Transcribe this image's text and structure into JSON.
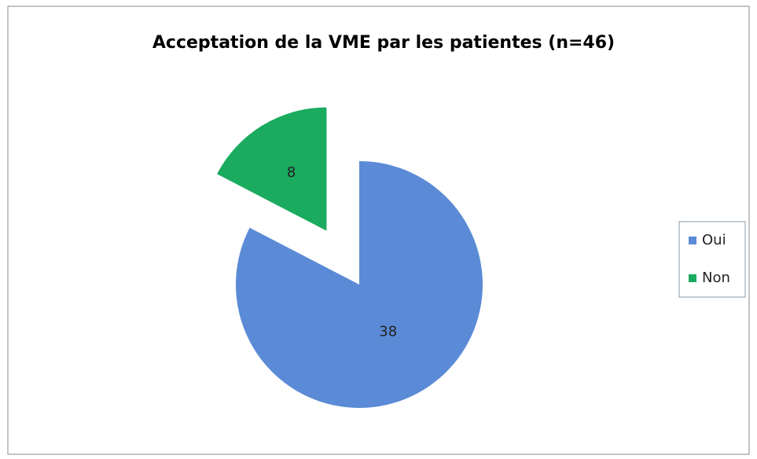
{
  "chart_data": {
    "type": "pie",
    "title": "Acceptation de la VME par les patientes (n=46)",
    "categories": [
      "Oui",
      "Non"
    ],
    "values": [
      38,
      8
    ],
    "colors": [
      "#5b8bd6",
      "#1aab5f"
    ],
    "exploded": [
      false,
      true
    ],
    "legend": "right"
  }
}
